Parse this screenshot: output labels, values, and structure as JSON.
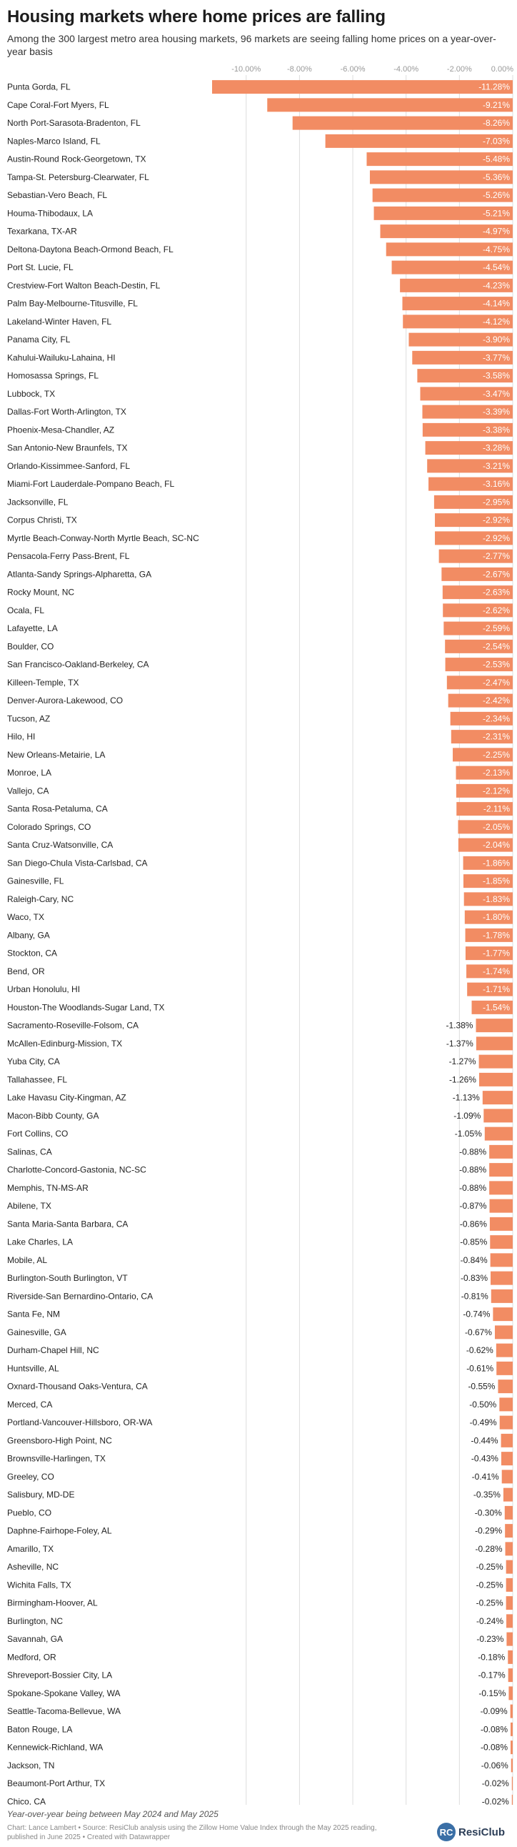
{
  "header": {
    "title": "Housing markets where home prices are falling",
    "subtitle": "Among the 300 largest metro area housing markets, 96 markets are seeing falling home prices on a year-over-year basis"
  },
  "footer": {
    "note": "Year-over-year being between May 2024 and May 2025",
    "source_line1": "Chart: Lance Lambert • Source: ResiClub analysis using the Zillow Home Value Index through the May 2025 reading,",
    "source_line2": "published in June 2025 • Created with Datawrapper",
    "logo_mark": "RC",
    "logo_text": "ResiClub"
  },
  "colors": {
    "bar": "#f28c63",
    "grid": "#dddddd",
    "axis_text": "#999999",
    "label_text": "#222222"
  },
  "chart_data": {
    "type": "bar",
    "orientation": "horizontal",
    "xlim": [
      -11.28,
      0
    ],
    "ticks": [
      -10,
      -8,
      -6,
      -4,
      -2,
      0
    ],
    "tick_labels": [
      "-10.00%",
      "-8.00%",
      "-6.00%",
      "-4.00%",
      "-2.00%",
      "0.00%"
    ],
    "categories": [
      "Punta Gorda, FL",
      "Cape Coral-Fort Myers, FL",
      "North Port-Sarasota-Bradenton, FL",
      "Naples-Marco Island, FL",
      "Austin-Round Rock-Georgetown, TX",
      "Tampa-St. Petersburg-Clearwater, FL",
      "Sebastian-Vero Beach, FL",
      "Houma-Thibodaux, LA",
      "Texarkana, TX-AR",
      "Deltona-Daytona Beach-Ormond Beach, FL",
      "Port St. Lucie, FL",
      "Crestview-Fort Walton Beach-Destin, FL",
      "Palm Bay-Melbourne-Titusville, FL",
      "Lakeland-Winter Haven, FL",
      "Panama City, FL",
      "Kahului-Wailuku-Lahaina, HI",
      "Homosassa Springs, FL",
      "Lubbock, TX",
      "Dallas-Fort Worth-Arlington, TX",
      "Phoenix-Mesa-Chandler, AZ",
      "San Antonio-New Braunfels, TX",
      "Orlando-Kissimmee-Sanford, FL",
      "Miami-Fort Lauderdale-Pompano Beach, FL",
      "Jacksonville, FL",
      "Corpus Christi, TX",
      "Myrtle Beach-Conway-North Myrtle Beach, SC-NC",
      "Pensacola-Ferry Pass-Brent, FL",
      "Atlanta-Sandy Springs-Alpharetta, GA",
      "Rocky Mount, NC",
      "Ocala, FL",
      "Lafayette, LA",
      "Boulder, CO",
      "San Francisco-Oakland-Berkeley, CA",
      "Killeen-Temple, TX",
      "Denver-Aurora-Lakewood, CO",
      "Tucson, AZ",
      "Hilo, HI",
      "New Orleans-Metairie, LA",
      "Monroe, LA",
      "Vallejo, CA",
      "Santa Rosa-Petaluma, CA",
      "Colorado Springs, CO",
      "Santa Cruz-Watsonville, CA",
      "San Diego-Chula Vista-Carlsbad, CA",
      "Gainesville, FL",
      "Raleigh-Cary, NC",
      "Waco, TX",
      "Albany, GA",
      "Stockton, CA",
      "Bend, OR",
      "Urban Honolulu, HI",
      "Houston-The Woodlands-Sugar Land, TX",
      "Sacramento-Roseville-Folsom, CA",
      "McAllen-Edinburg-Mission, TX",
      "Yuba City, CA",
      "Tallahassee, FL",
      "Lake Havasu City-Kingman, AZ",
      "Macon-Bibb County, GA",
      "Fort Collins, CO",
      "Salinas, CA",
      "Charlotte-Concord-Gastonia, NC-SC",
      "Memphis, TN-MS-AR",
      "Abilene, TX",
      "Santa Maria-Santa Barbara, CA",
      "Lake Charles, LA",
      "Mobile, AL",
      "Burlington-South Burlington, VT",
      "Riverside-San Bernardino-Ontario, CA",
      "Santa Fe, NM",
      "Gainesville, GA",
      "Durham-Chapel Hill, NC",
      "Huntsville, AL",
      "Oxnard-Thousand Oaks-Ventura, CA",
      "Merced, CA",
      "Portland-Vancouver-Hillsboro, OR-WA",
      "Greensboro-High Point, NC",
      "Brownsville-Harlingen, TX",
      "Greeley, CO",
      "Salisbury, MD-DE",
      "Pueblo, CO",
      "Daphne-Fairhope-Foley, AL",
      "Amarillo, TX",
      "Asheville, NC",
      "Wichita Falls, TX",
      "Birmingham-Hoover, AL",
      "Burlington, NC",
      "Savannah, GA",
      "Medford, OR",
      "Shreveport-Bossier City, LA",
      "Spokane-Spokane Valley, WA",
      "Seattle-Tacoma-Bellevue, WA",
      "Baton Rouge, LA",
      "Kennewick-Richland, WA",
      "Jackson, TN",
      "Beaumont-Port Arthur, TX",
      "Chico, CA"
    ],
    "values": [
      -11.28,
      -9.21,
      -8.26,
      -7.03,
      -5.48,
      -5.36,
      -5.26,
      -5.21,
      -4.97,
      -4.75,
      -4.54,
      -4.23,
      -4.14,
      -4.12,
      -3.9,
      -3.77,
      -3.58,
      -3.47,
      -3.39,
      -3.38,
      -3.28,
      -3.21,
      -3.16,
      -2.95,
      -2.92,
      -2.92,
      -2.77,
      -2.67,
      -2.63,
      -2.62,
      -2.59,
      -2.54,
      -2.53,
      -2.47,
      -2.42,
      -2.34,
      -2.31,
      -2.25,
      -2.13,
      -2.12,
      -2.11,
      -2.05,
      -2.04,
      -1.86,
      -1.85,
      -1.83,
      -1.8,
      -1.78,
      -1.77,
      -1.74,
      -1.71,
      -1.54,
      -1.38,
      -1.37,
      -1.27,
      -1.26,
      -1.13,
      -1.09,
      -1.05,
      -0.88,
      -0.88,
      -0.88,
      -0.87,
      -0.86,
      -0.85,
      -0.84,
      -0.83,
      -0.81,
      -0.74,
      -0.67,
      -0.62,
      -0.61,
      -0.55,
      -0.5,
      -0.49,
      -0.44,
      -0.43,
      -0.41,
      -0.35,
      -0.3,
      -0.29,
      -0.28,
      -0.25,
      -0.25,
      -0.25,
      -0.24,
      -0.23,
      -0.18,
      -0.17,
      -0.15,
      -0.09,
      -0.08,
      -0.08,
      -0.06,
      -0.02,
      -0.02
    ],
    "value_labels": [
      "-11.28%",
      "-9.21%",
      "-8.26%",
      "-7.03%",
      "-5.48%",
      "-5.36%",
      "-5.26%",
      "-5.21%",
      "-4.97%",
      "-4.75%",
      "-4.54%",
      "-4.23%",
      "-4.14%",
      "-4.12%",
      "-3.90%",
      "-3.77%",
      "-3.58%",
      "-3.47%",
      "-3.39%",
      "-3.38%",
      "-3.28%",
      "-3.21%",
      "-3.16%",
      "-2.95%",
      "-2.92%",
      "-2.92%",
      "-2.77%",
      "-2.67%",
      "-2.63%",
      "-2.62%",
      "-2.59%",
      "-2.54%",
      "-2.53%",
      "-2.47%",
      "-2.42%",
      "-2.34%",
      "-2.31%",
      "-2.25%",
      "-2.13%",
      "-2.12%",
      "-2.11%",
      "-2.05%",
      "-2.04%",
      "-1.86%",
      "-1.85%",
      "-1.83%",
      "-1.80%",
      "-1.78%",
      "-1.77%",
      "-1.74%",
      "-1.71%",
      "-1.54%",
      "-1.38%",
      "-1.37%",
      "-1.27%",
      "-1.26%",
      "-1.13%",
      "-1.09%",
      "-1.05%",
      "-0.88%",
      "-0.88%",
      "-0.88%",
      "-0.87%",
      "-0.86%",
      "-0.85%",
      "-0.84%",
      "-0.83%",
      "-0.81%",
      "-0.74%",
      "-0.67%",
      "-0.62%",
      "-0.61%",
      "-0.55%",
      "-0.50%",
      "-0.49%",
      "-0.44%",
      "-0.43%",
      "-0.41%",
      "-0.35%",
      "-0.30%",
      "-0.29%",
      "-0.28%",
      "-0.25%",
      "-0.25%",
      "-0.25%",
      "-0.24%",
      "-0.23%",
      "-0.18%",
      "-0.17%",
      "-0.15%",
      "-0.09%",
      "-0.08%",
      "-0.08%",
      "-0.06%",
      "-0.02%",
      "-0.02%"
    ]
  }
}
